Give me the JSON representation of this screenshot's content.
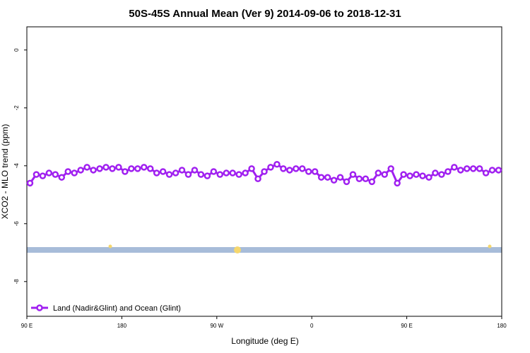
{
  "chart_data": {
    "type": "line",
    "title": "50S-45S Annual Mean (Ver 9)   2014-09-06 to 2018-12-31",
    "x_label": "Longitude (deg E)",
    "y_label": "XCO2 - MLO trend (ppm)",
    "xlim": [
      90,
      540
    ],
    "ylim": [
      -9.2,
      0.8
    ],
    "xticks": [
      {
        "value": 90,
        "label": "90 E"
      },
      180,
      {
        "value": 270,
        "label": "90 W"
      },
      {
        "value": 360,
        "label": "0"
      },
      {
        "value": 450,
        "label": "90 E"
      },
      {
        "value": 540,
        "label": "180"
      }
    ],
    "yticks": [
      0,
      -2,
      -4,
      -6,
      -8
    ],
    "legend": "bottom-left",
    "x": [
      93,
      99,
      105,
      111,
      117,
      123,
      129,
      135,
      141,
      147,
      153,
      159,
      165,
      171,
      177,
      183,
      189,
      195,
      201,
      207,
      213,
      219,
      225,
      231,
      237,
      243,
      249,
      255,
      261,
      267,
      273,
      279,
      285,
      291,
      297,
      303,
      309,
      315,
      321,
      327,
      333,
      339,
      345,
      351,
      357,
      363,
      369,
      375,
      381,
      387,
      393,
      399,
      405,
      411,
      417,
      423,
      429,
      435,
      441,
      447,
      453,
      459,
      465,
      471,
      477,
      483,
      489,
      495,
      501,
      507,
      513,
      519,
      525,
      531,
      537
    ],
    "series": [
      {
        "name": "Land (Nadir&Glint) and Ocean (Glint)",
        "color": "#a020f0",
        "values": [
          -4.6,
          -4.3,
          -4.35,
          -4.25,
          -4.3,
          -4.4,
          -4.2,
          -4.25,
          -4.15,
          -4.05,
          -4.15,
          -4.1,
          -4.05,
          -4.1,
          -4.05,
          -4.2,
          -4.1,
          -4.1,
          -4.05,
          -4.1,
          -4.25,
          -4.2,
          -4.3,
          -4.25,
          -4.15,
          -4.3,
          -4.15,
          -4.3,
          -4.35,
          -4.2,
          -4.3,
          -4.25,
          -4.25,
          -4.3,
          -4.25,
          -4.1,
          -4.45,
          -4.2,
          -4.05,
          -3.95,
          -4.1,
          -4.15,
          -4.1,
          -4.1,
          -4.2,
          -4.2,
          -4.4,
          -4.4,
          -4.5,
          -4.4,
          -4.55,
          -4.3,
          -4.45,
          -4.45,
          -4.55,
          -4.25,
          -4.3,
          -4.1,
          -4.6,
          -4.3,
          -4.35,
          -4.3,
          -4.35,
          -4.4,
          -4.25,
          -4.3,
          -4.2,
          -4.05,
          -4.15,
          -4.1,
          -4.1,
          -4.1,
          -4.25,
          -4.15,
          -4.15
        ]
      }
    ]
  }
}
